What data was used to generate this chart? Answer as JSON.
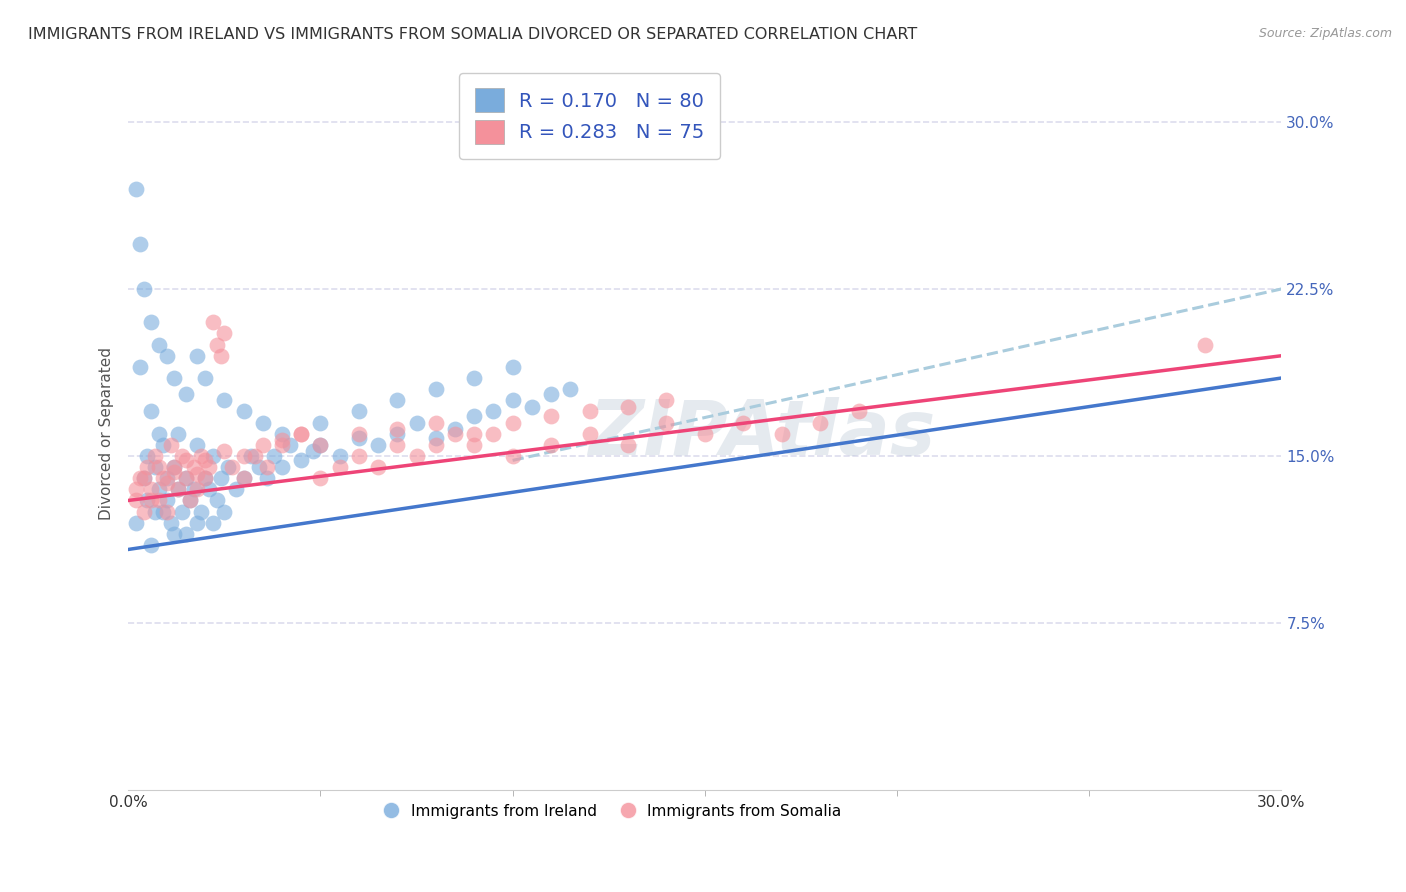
{
  "title": "IMMIGRANTS FROM IRELAND VS IMMIGRANTS FROM SOMALIA DIVORCED OR SEPARATED CORRELATION CHART",
  "source": "Source: ZipAtlas.com",
  "ylabel": "Divorced or Separated",
  "xlim": [
    0.0,
    0.3
  ],
  "ylim": [
    0.0,
    0.32
  ],
  "ytick_positions": [
    0.075,
    0.15,
    0.225,
    0.3
  ],
  "ytick_labels": [
    "7.5%",
    "15.0%",
    "22.5%",
    "30.0%"
  ],
  "ireland_color": "#7AACDC",
  "somalia_color": "#F4919B",
  "ireland_line_color": "#4477CC",
  "somalia_line_color": "#EE4477",
  "dashed_line_color": "#AACCDD",
  "legend_text_color": "#3355BB",
  "ireland_R": 0.17,
  "ireland_N": 80,
  "somalia_R": 0.283,
  "somalia_N": 75,
  "background_color": "#FFFFFF",
  "grid_color": "#DDDDEE",
  "title_fontsize": 11.5,
  "axis_label_fontsize": 11,
  "tick_fontsize": 11,
  "legend_fontsize": 14,
  "ireland_x": [
    0.002,
    0.003,
    0.004,
    0.005,
    0.005,
    0.006,
    0.006,
    0.007,
    0.007,
    0.008,
    0.008,
    0.009,
    0.009,
    0.01,
    0.01,
    0.011,
    0.012,
    0.012,
    0.013,
    0.013,
    0.014,
    0.015,
    0.015,
    0.016,
    0.017,
    0.018,
    0.018,
    0.019,
    0.02,
    0.021,
    0.022,
    0.022,
    0.023,
    0.024,
    0.025,
    0.026,
    0.028,
    0.03,
    0.032,
    0.034,
    0.036,
    0.038,
    0.04,
    0.042,
    0.045,
    0.048,
    0.05,
    0.055,
    0.06,
    0.065,
    0.07,
    0.075,
    0.08,
    0.085,
    0.09,
    0.095,
    0.1,
    0.105,
    0.11,
    0.115,
    0.002,
    0.003,
    0.004,
    0.006,
    0.008,
    0.01,
    0.012,
    0.015,
    0.018,
    0.02,
    0.025,
    0.03,
    0.035,
    0.04,
    0.05,
    0.06,
    0.07,
    0.08,
    0.09,
    0.1
  ],
  "ireland_y": [
    0.12,
    0.19,
    0.14,
    0.13,
    0.15,
    0.17,
    0.11,
    0.125,
    0.145,
    0.135,
    0.16,
    0.125,
    0.155,
    0.13,
    0.14,
    0.12,
    0.115,
    0.145,
    0.135,
    0.16,
    0.125,
    0.115,
    0.14,
    0.13,
    0.135,
    0.12,
    0.155,
    0.125,
    0.14,
    0.135,
    0.12,
    0.15,
    0.13,
    0.14,
    0.125,
    0.145,
    0.135,
    0.14,
    0.15,
    0.145,
    0.14,
    0.15,
    0.145,
    0.155,
    0.148,
    0.152,
    0.155,
    0.15,
    0.158,
    0.155,
    0.16,
    0.165,
    0.158,
    0.162,
    0.168,
    0.17,
    0.175,
    0.172,
    0.178,
    0.18,
    0.27,
    0.245,
    0.225,
    0.21,
    0.2,
    0.195,
    0.185,
    0.178,
    0.195,
    0.185,
    0.175,
    0.17,
    0.165,
    0.16,
    0.165,
    0.17,
    0.175,
    0.18,
    0.185,
    0.19
  ],
  "somalia_x": [
    0.002,
    0.003,
    0.004,
    0.005,
    0.006,
    0.007,
    0.008,
    0.009,
    0.01,
    0.011,
    0.012,
    0.013,
    0.014,
    0.015,
    0.016,
    0.017,
    0.018,
    0.019,
    0.02,
    0.021,
    0.022,
    0.023,
    0.024,
    0.025,
    0.027,
    0.03,
    0.033,
    0.036,
    0.04,
    0.045,
    0.05,
    0.055,
    0.06,
    0.065,
    0.07,
    0.075,
    0.08,
    0.085,
    0.09,
    0.095,
    0.1,
    0.11,
    0.12,
    0.13,
    0.14,
    0.15,
    0.16,
    0.17,
    0.18,
    0.19,
    0.002,
    0.004,
    0.006,
    0.008,
    0.01,
    0.012,
    0.015,
    0.018,
    0.02,
    0.025,
    0.03,
    0.035,
    0.04,
    0.045,
    0.05,
    0.06,
    0.07,
    0.08,
    0.09,
    0.1,
    0.11,
    0.12,
    0.28,
    0.13,
    0.14
  ],
  "somalia_y": [
    0.13,
    0.14,
    0.125,
    0.145,
    0.135,
    0.15,
    0.13,
    0.14,
    0.125,
    0.155,
    0.145,
    0.135,
    0.15,
    0.14,
    0.13,
    0.145,
    0.135,
    0.15,
    0.14,
    0.145,
    0.21,
    0.2,
    0.195,
    0.205,
    0.145,
    0.14,
    0.15,
    0.145,
    0.155,
    0.16,
    0.14,
    0.145,
    0.15,
    0.145,
    0.155,
    0.15,
    0.155,
    0.16,
    0.155,
    0.16,
    0.15,
    0.155,
    0.16,
    0.155,
    0.165,
    0.16,
    0.165,
    0.16,
    0.165,
    0.17,
    0.135,
    0.14,
    0.13,
    0.145,
    0.138,
    0.143,
    0.148,
    0.142,
    0.148,
    0.152,
    0.15,
    0.155,
    0.157,
    0.16,
    0.155,
    0.16,
    0.162,
    0.165,
    0.16,
    0.165,
    0.168,
    0.17,
    0.2,
    0.172,
    0.175
  ],
  "ireland_trend_x": [
    0.0,
    0.3
  ],
  "ireland_trend_y": [
    0.108,
    0.185
  ],
  "somalia_trend_x": [
    0.0,
    0.3
  ],
  "somalia_trend_y": [
    0.13,
    0.195
  ],
  "dashed_trend_x": [
    0.1,
    0.3
  ],
  "dashed_trend_y": [
    0.148,
    0.225
  ]
}
